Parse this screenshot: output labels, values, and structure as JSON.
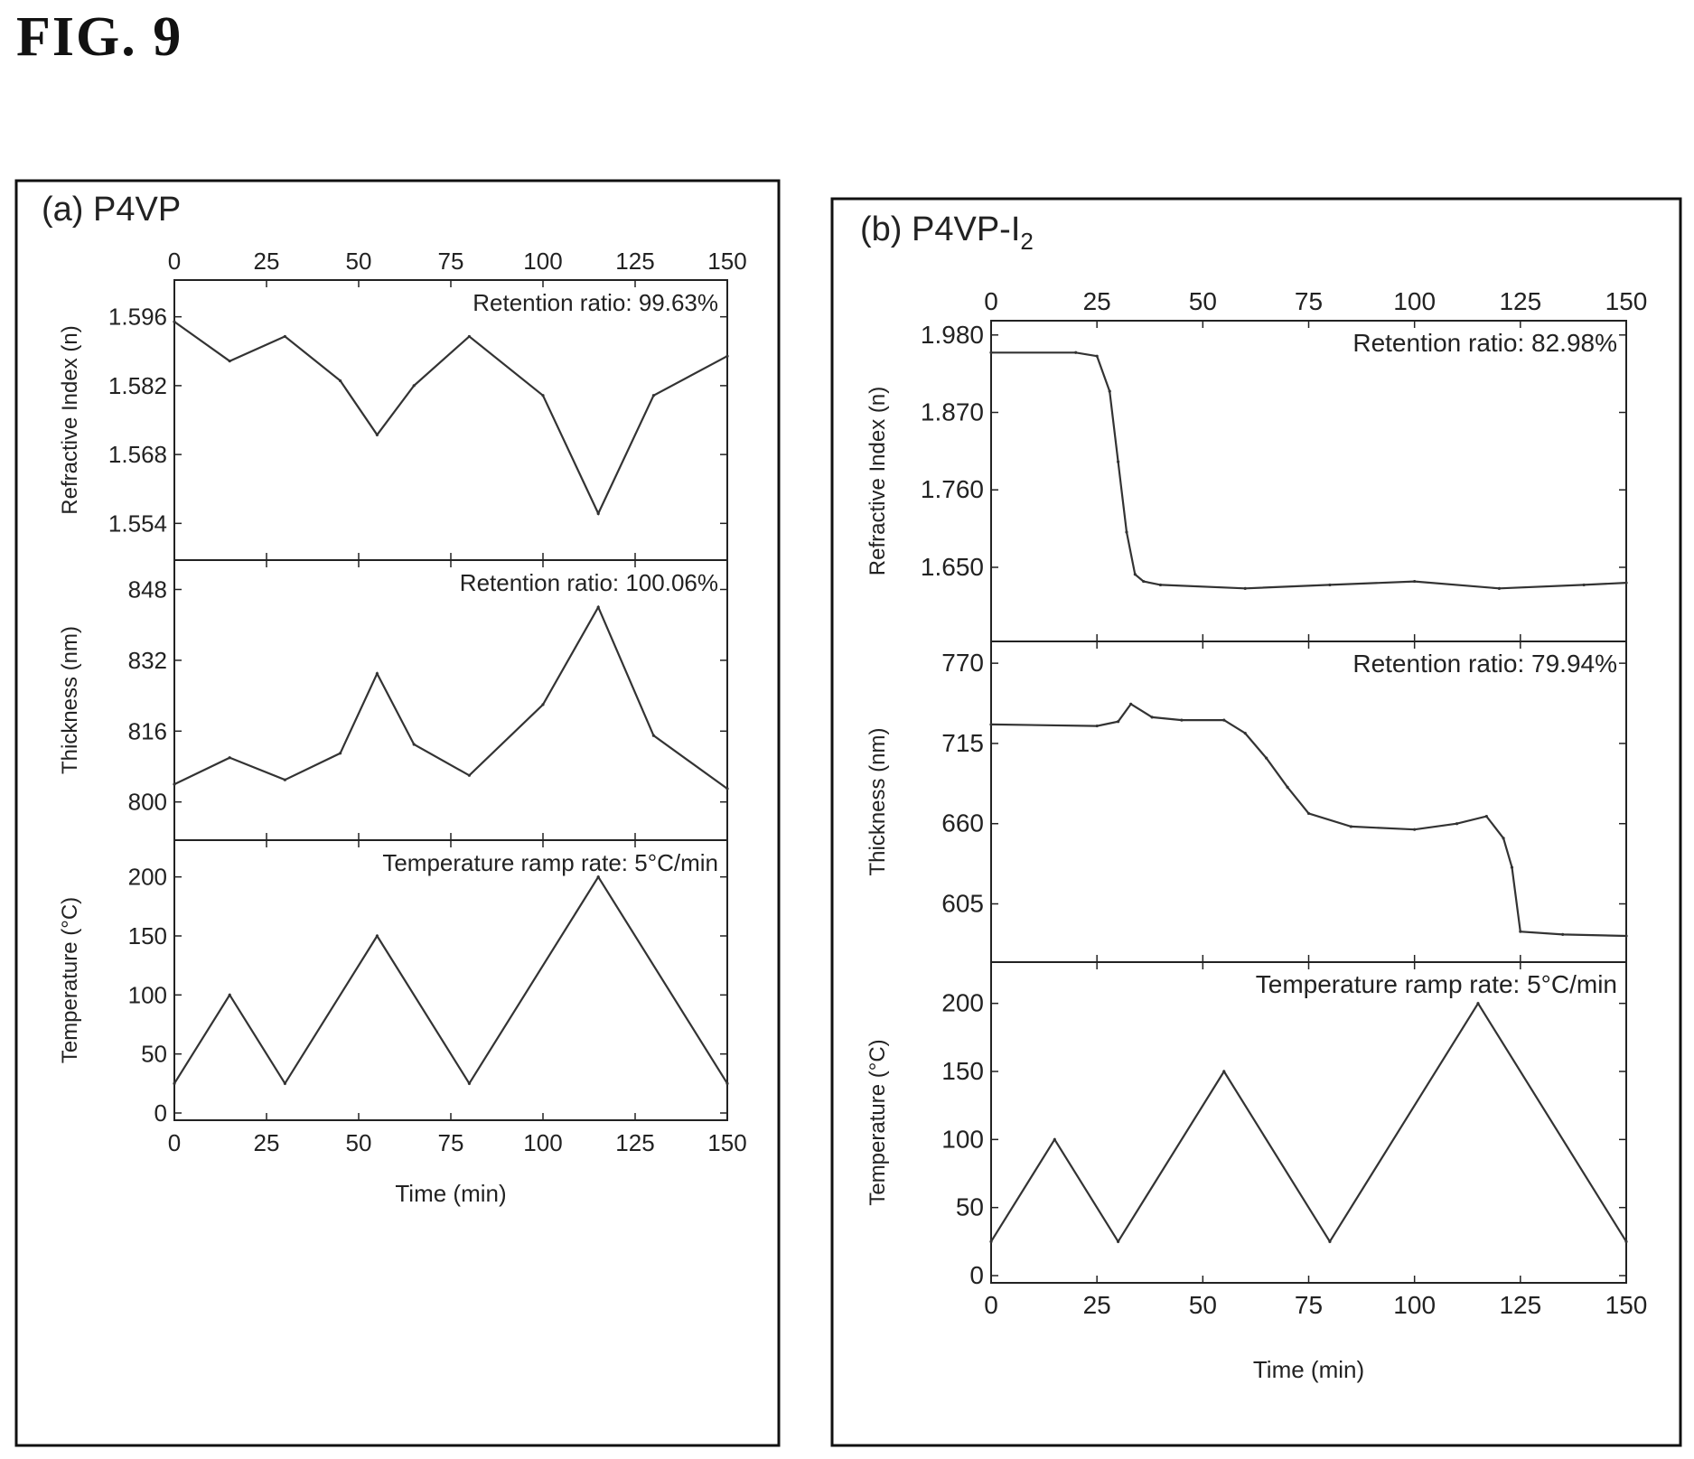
{
  "figure_title": "FIG. 9",
  "chart_data": [
    {
      "panel_label": "(a) P4VP",
      "type": "line",
      "x_ticks": [
        0,
        25,
        50,
        75,
        100,
        125,
        150
      ],
      "xlim": [
        0,
        150
      ],
      "xlabel": "Time (min)",
      "subplots": [
        {
          "id": "a-ri",
          "ylabel": "Refractive Index (n)",
          "ylim": [
            1.548,
            1.602
          ],
          "yticks": [
            "1.596",
            "1.582",
            "1.568",
            "1.554"
          ],
          "annotation": "Retention ratio: 99.63%",
          "series": [
            {
              "x": [
                0,
                15,
                30,
                45,
                55,
                65,
                80,
                100,
                115,
                130,
                150
              ],
              "y": [
                1.595,
                1.587,
                1.592,
                1.583,
                1.572,
                1.582,
                1.592,
                1.58,
                1.556,
                1.58,
                1.588
              ]
            }
          ]
        },
        {
          "id": "a-th",
          "ylabel": "Thickness (nm)",
          "ylim": [
            793,
            853
          ],
          "yticks": [
            "848",
            "832",
            "816",
            "800"
          ],
          "annotation": "Retention ratio: 100.06%",
          "series": [
            {
              "x": [
                0,
                15,
                30,
                45,
                55,
                65,
                80,
                100,
                115,
                130,
                150
              ],
              "y": [
                804,
                810,
                805,
                811,
                829,
                813,
                806,
                822,
                844,
                815,
                803
              ]
            }
          ]
        },
        {
          "id": "a-t",
          "ylabel": "Temperature (°C)",
          "ylim": [
            0,
            225
          ],
          "yticks": [
            "200",
            "150",
            "100",
            "50",
            "0"
          ],
          "annotation": "Temperature ramp rate: 5°C/min",
          "series": [
            {
              "x": [
                0,
                15,
                30,
                55,
                80,
                115,
                150
              ],
              "y": [
                25,
                100,
                25,
                150,
                25,
                200,
                25
              ]
            }
          ]
        }
      ]
    },
    {
      "panel_label": "(b) P4VP-I2",
      "type": "line",
      "x_ticks": [
        0,
        25,
        50,
        75,
        100,
        125,
        150
      ],
      "xlim": [
        0,
        150
      ],
      "xlabel": "Time (min)",
      "subplots": [
        {
          "id": "b-ri",
          "ylabel": "Refractive Index (n)",
          "ylim": [
            1.555,
            1.99
          ],
          "yticks": [
            "1.980",
            "1.870",
            "1.760",
            "1.650"
          ],
          "annotation": "Retention ratio: 82.98%",
          "series": [
            {
              "x": [
                0,
                20,
                25,
                28,
                30,
                32,
                34,
                36,
                40,
                60,
                80,
                100,
                120,
                140,
                150
              ],
              "y": [
                1.955,
                1.955,
                1.95,
                1.9,
                1.8,
                1.7,
                1.64,
                1.63,
                1.625,
                1.62,
                1.625,
                1.63,
                1.62,
                1.625,
                1.628
              ]
            }
          ]
        },
        {
          "id": "b-th",
          "ylabel": "Thickness (nm)",
          "ylim": [
            570,
            780
          ],
          "yticks": [
            "770",
            "715",
            "660",
            "605"
          ],
          "annotation": "Retention ratio: 79.94%",
          "series": [
            {
              "x": [
                0,
                25,
                30,
                33,
                38,
                45,
                55,
                60,
                65,
                70,
                75,
                85,
                100,
                110,
                117,
                121,
                123,
                125,
                135,
                150
              ],
              "y": [
                728,
                727,
                730,
                742,
                733,
                731,
                731,
                722,
                705,
                685,
                667,
                658,
                656,
                660,
                665,
                650,
                630,
                586,
                584,
                583
              ]
            }
          ]
        },
        {
          "id": "b-t",
          "ylabel": "Temperature (°C)",
          "ylim": [
            0,
            225
          ],
          "yticks": [
            "200",
            "150",
            "100",
            "50",
            "0"
          ],
          "annotation": "Temperature ramp rate: 5°C/min",
          "series": [
            {
              "x": [
                0,
                15,
                30,
                55,
                80,
                115,
                150
              ],
              "y": [
                25,
                100,
                25,
                150,
                25,
                200,
                25
              ]
            }
          ]
        }
      ]
    }
  ]
}
